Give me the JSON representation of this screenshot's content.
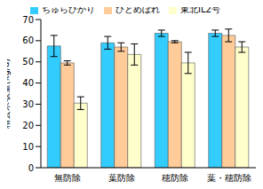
{
  "chart_data": {
    "type": "bar",
    "y_label": "精玄米収量(kg/a)",
    "categories": [
      "無防除",
      "葉防除",
      "穂防除",
      "葉・穂防除"
    ],
    "series": [
      {
        "name": "ちゅらひかり",
        "color": "#33ccff",
        "values": [
          57.5,
          59,
          63.5,
          63.5
        ],
        "errors": [
          5,
          3,
          1.5,
          1.5
        ]
      },
      {
        "name": "ひとめぼれ",
        "color": "#ffcc99",
        "values": [
          49.5,
          57,
          59.5,
          62.5
        ],
        "errors": [
          1,
          2,
          0.5,
          3
        ]
      },
      {
        "name": "東北IL2号",
        "color": "#ffffcc",
        "values": [
          30.5,
          53.5,
          49.5,
          57
        ],
        "errors": [
          3,
          5,
          5,
          2.5
        ]
      }
    ],
    "ylim": [
      0,
      70
    ],
    "yticks": [
      0,
      10,
      20,
      30,
      40,
      50,
      60,
      70
    ],
    "grid": false,
    "legend": "top"
  }
}
